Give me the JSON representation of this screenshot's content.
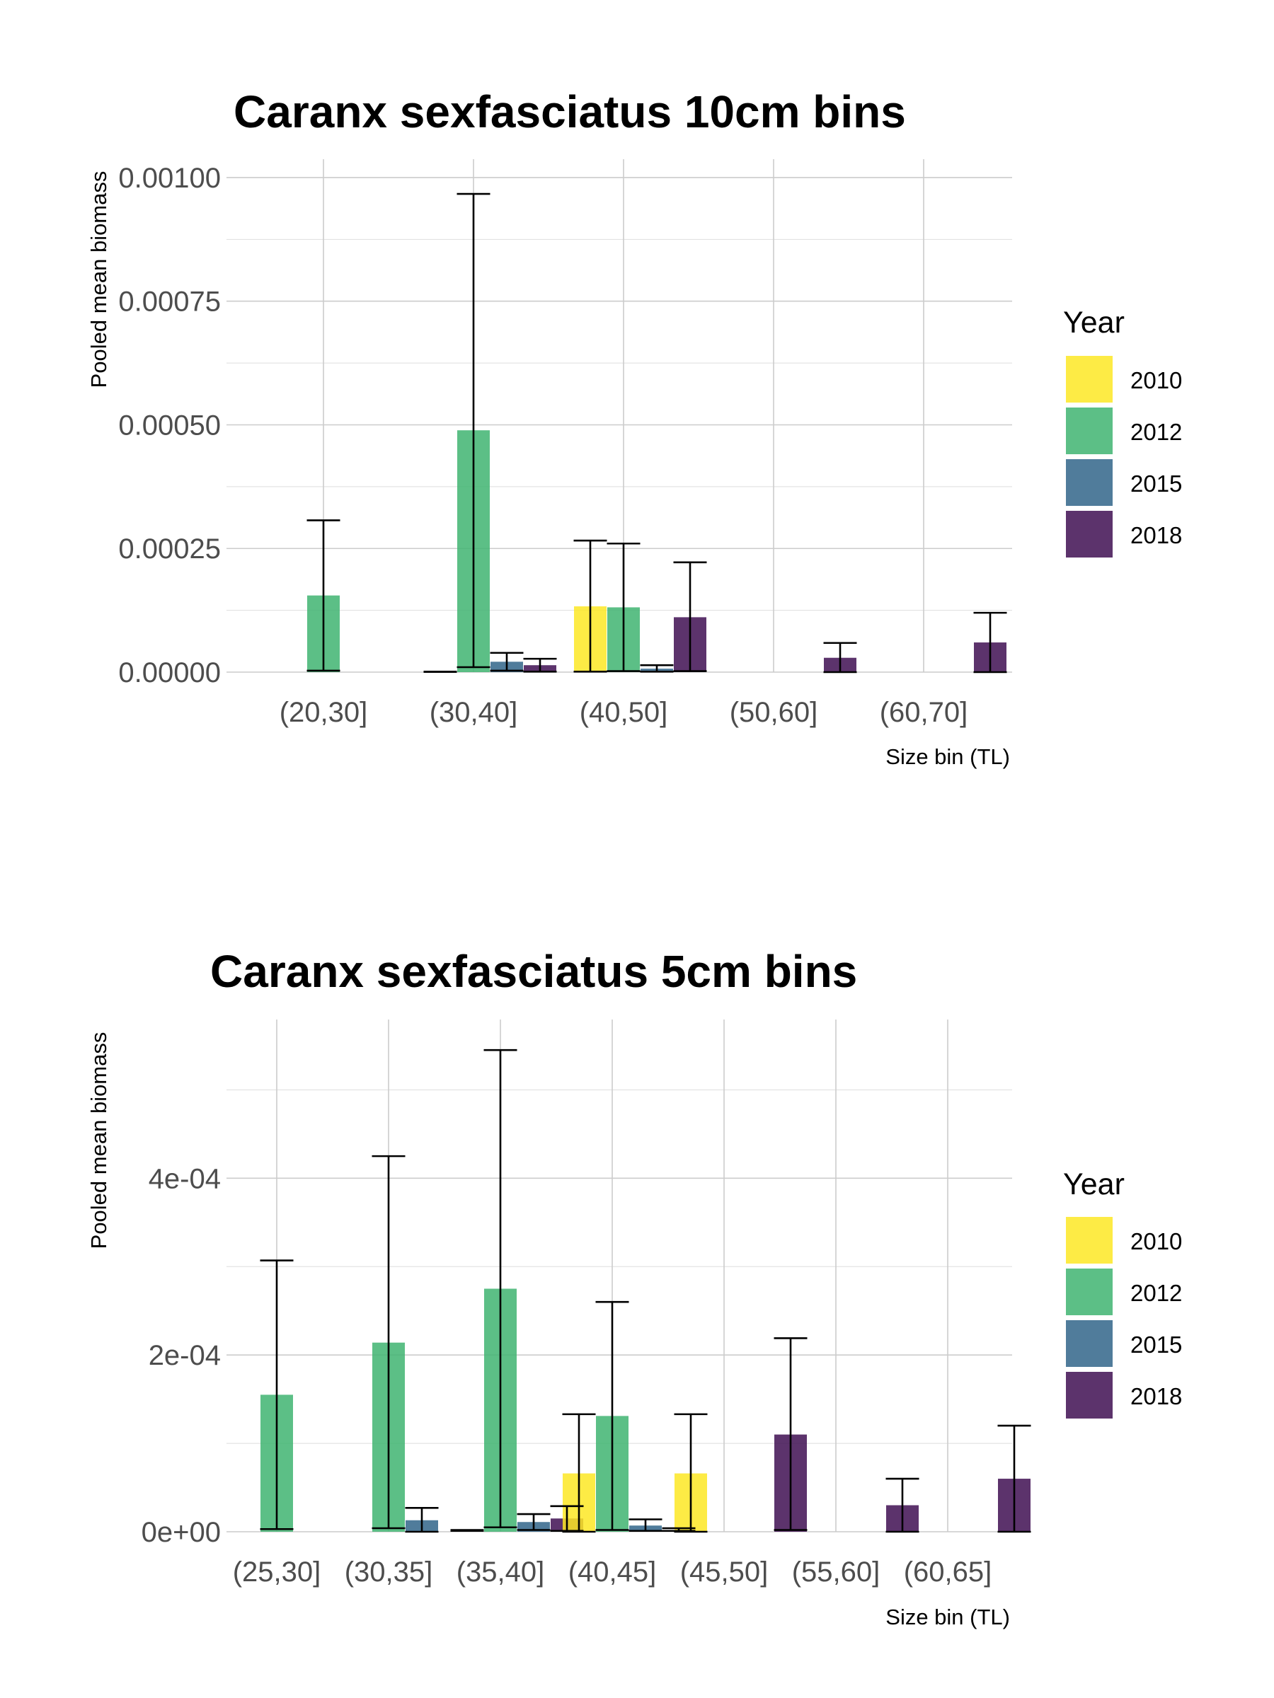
{
  "legend": {
    "title": "Year",
    "items": [
      {
        "label": "2010",
        "color": "#FDE725"
      },
      {
        "label": "2012",
        "color": "#3FB471"
      },
      {
        "label": "2015",
        "color": "#31658A"
      },
      {
        "label": "2018",
        "color": "#3F0F52"
      }
    ]
  },
  "chart_data": [
    {
      "type": "bar",
      "title": "Caranx sexfasciatus 10cm bins",
      "xlabel": "Size bin (TL)",
      "ylabel": "Pooled mean biomass",
      "ylim": [
        0,
        0.00102
      ],
      "y_ticks": [
        "0.00000",
        "0.00025",
        "0.00050",
        "0.00075",
        "0.00100"
      ],
      "y_tick_values": [
        0,
        0.00025,
        0.0005,
        0.00075,
        0.001
      ],
      "grid": true,
      "legend_position": "right",
      "categories": [
        "(20,30]",
        "(30,40]",
        "(40,50]",
        "(50,60]",
        "(60,70]"
      ],
      "bars": [
        {
          "category": "(20,30]",
          "year": "2012",
          "value": 0.000155,
          "err_low": 3e-06,
          "err_high": 0.000307
        },
        {
          "category": "(30,40]",
          "year": "2010",
          "value": 7e-07,
          "err_low": 5e-07,
          "err_high": 1e-06
        },
        {
          "category": "(30,40]",
          "year": "2012",
          "value": 0.000489,
          "err_low": 1e-05,
          "err_high": 0.000967
        },
        {
          "category": "(30,40]",
          "year": "2015",
          "value": 2.1e-05,
          "err_low": 3e-06,
          "err_high": 3.9e-05
        },
        {
          "category": "(30,40]",
          "year": "2018",
          "value": 1.4e-05,
          "err_low": 1e-06,
          "err_high": 2.7e-05
        },
        {
          "category": "(40,50]",
          "year": "2010",
          "value": 0.000133,
          "err_low": 1e-06,
          "err_high": 0.000266
        },
        {
          "category": "(40,50]",
          "year": "2012",
          "value": 0.000131,
          "err_low": 2e-06,
          "err_high": 0.00026
        },
        {
          "category": "(40,50]",
          "year": "2015",
          "value": 7e-06,
          "err_low": 1e-06,
          "err_high": 1.4e-05
        },
        {
          "category": "(40,50]",
          "year": "2018",
          "value": 0.000111,
          "err_low": 2e-06,
          "err_high": 0.000222
        },
        {
          "category": "(50,60]",
          "year": "2018",
          "value": 2.9e-05,
          "err_low": 0.0,
          "err_high": 5.9e-05
        },
        {
          "category": "(60,70]",
          "year": "2018",
          "value": 6e-05,
          "err_low": 0.0,
          "err_high": 0.00012
        }
      ]
    },
    {
      "type": "bar",
      "title": "Caranx sexfasciatus 5cm bins",
      "xlabel": "Size bin (TL)",
      "ylabel": "Pooled mean biomass",
      "ylim": [
        0,
        0.00057
      ],
      "y_ticks": [
        "0e+00",
        "2e-04",
        "4e-04"
      ],
      "y_tick_values": [
        0,
        0.0002,
        0.0004
      ],
      "grid": true,
      "legend_position": "right",
      "categories": [
        "(25,30]",
        "(30,35]",
        "(35,40]",
        "(40,45]",
        "(45,50]",
        "(55,60]",
        "(60,65]"
      ],
      "bars": [
        {
          "category": "(25,30]",
          "year": "2012",
          "value": 0.000155,
          "err_low": 3e-06,
          "err_high": 0.000307
        },
        {
          "category": "(30,35]",
          "year": "2012",
          "value": 0.000214,
          "err_low": 4e-06,
          "err_high": 0.000425
        },
        {
          "category": "(30,35]",
          "year": "2015",
          "value": 1.3e-05,
          "err_low": 0.0,
          "err_high": 2.7e-05
        },
        {
          "category": "(35,40]",
          "year": "2010",
          "value": 1.5e-06,
          "err_low": 1e-06,
          "err_high": 2e-06
        },
        {
          "category": "(35,40]",
          "year": "2012",
          "value": 0.000275,
          "err_low": 5e-06,
          "err_high": 0.000545
        },
        {
          "category": "(35,40]",
          "year": "2015",
          "value": 1.1e-05,
          "err_low": 2e-06,
          "err_high": 2e-05
        },
        {
          "category": "(35,40]",
          "year": "2018",
          "value": 1.5e-05,
          "err_low": 1e-06,
          "err_high": 2.9e-05
        },
        {
          "category": "(40,45]",
          "year": "2010",
          "value": 6.6e-05,
          "err_low": 0.0,
          "err_high": 0.000133
        },
        {
          "category": "(40,45]",
          "year": "2012",
          "value": 0.000131,
          "err_low": 2e-06,
          "err_high": 0.00026
        },
        {
          "category": "(40,45]",
          "year": "2015",
          "value": 7e-06,
          "err_low": 1e-06,
          "err_high": 1.4e-05
        },
        {
          "category": "(40,45]",
          "year": "2018",
          "value": 2e-06,
          "err_low": 1e-06,
          "err_high": 4e-06
        },
        {
          "category": "(45,50]",
          "year": "2010",
          "value": 6.6e-05,
          "err_low": 0.0,
          "err_high": 0.000133
        },
        {
          "category": "(45,50]",
          "year": "2018",
          "value": 0.00011,
          "err_low": 2e-06,
          "err_high": 0.000219
        },
        {
          "category": "(55,60]",
          "year": "2018",
          "value": 3e-05,
          "err_low": 0.0,
          "err_high": 6e-05
        },
        {
          "category": "(60,65]",
          "year": "2018",
          "value": 6e-05,
          "err_low": 0.0,
          "err_high": 0.00012
        }
      ]
    }
  ]
}
